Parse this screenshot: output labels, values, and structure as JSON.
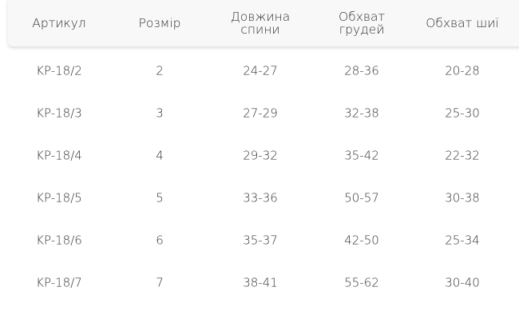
{
  "headers": [
    "Артикул",
    "Розмір",
    "Довжина спини",
    "Обхват грудей",
    "Обхват шиї"
  ],
  "rows": [
    [
      "KP-18/2",
      "2",
      "24-27",
      "28-36",
      "20-28"
    ],
    [
      "KP-18/3",
      "3",
      "27-29",
      "32-38",
      "25-30"
    ],
    [
      "KP-18/4",
      "4",
      "29-32",
      "35-42",
      "22-32"
    ],
    [
      "KP-18/5",
      "5",
      "33-36",
      "50-57",
      "30-38"
    ],
    [
      "KP-18/6",
      "6",
      "35-37",
      "42-50",
      "25-34"
    ],
    [
      "KP-18/7",
      "7",
      "38-41",
      "55-62",
      "30-40"
    ]
  ]
}
